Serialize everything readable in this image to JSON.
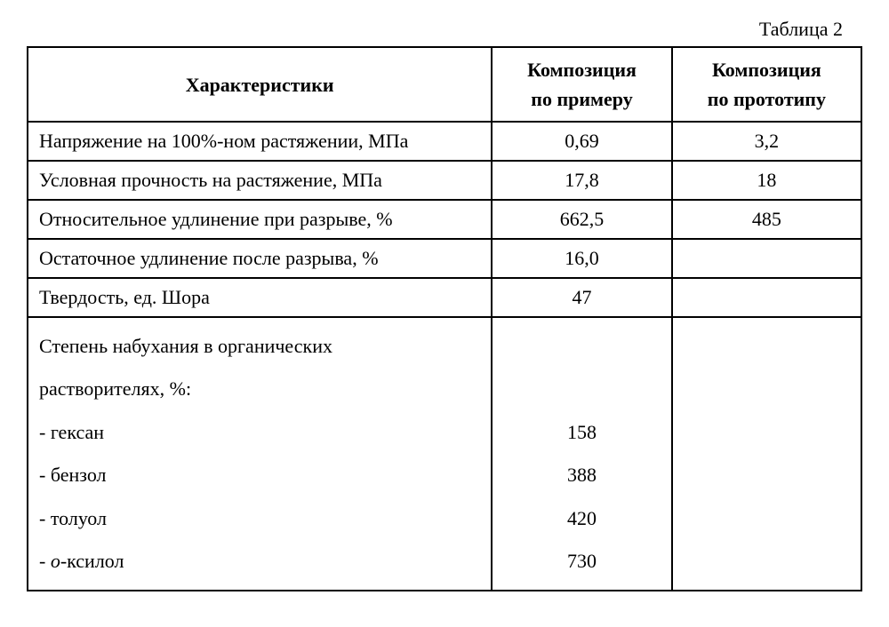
{
  "caption": "Таблица 2",
  "headers": {
    "c1": "Характеристики",
    "c2_l1": "Композиция",
    "c2_l2": "по примеру",
    "c3_l1": "Композиция",
    "c3_l2": "по прототипу"
  },
  "rows": [
    {
      "label": "Напряжение на 100%-ном растяжении, МПа",
      "v1": "0,69",
      "v2": "3,2"
    },
    {
      "label": "Условная прочность на растяжение, МПа",
      "v1": "17,8",
      "v2": "18"
    },
    {
      "label": "Относительное удлинение при разрыве, %",
      "v1": "662,5",
      "v2": "485"
    },
    {
      "label": "Остаточное удлинение после разрыва, %",
      "v1": "16,0",
      "v2": ""
    },
    {
      "label": "Твердость, ед. Шора",
      "v1": "47",
      "v2": ""
    }
  ],
  "swell": {
    "intro1": "Степень набухания в органических",
    "intro2": "растворителях, %:",
    "hexane_label": "- гексан",
    "benzene_label": "- бензол",
    "toluene_label": "- толуол",
    "oxylol_prefix": "- ",
    "oxylol_o": "о",
    "oxylol_rest": "-ксилол",
    "hexane_val": "158",
    "benzene_val": "388",
    "toluene_val": "420",
    "oxylol_val": "730"
  }
}
